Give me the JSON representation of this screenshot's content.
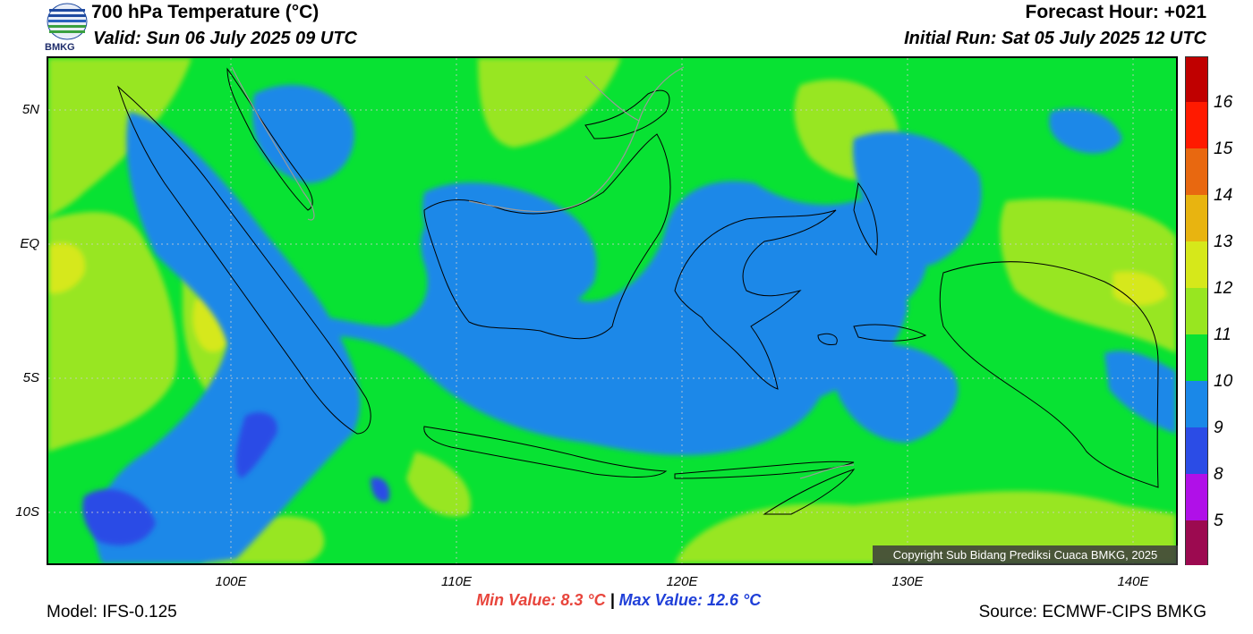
{
  "header": {
    "title": "700 hPa Temperature (°C)",
    "valid": "Valid: Sun 06 July 2025 09 UTC",
    "forecast_hour": "Forecast Hour: +021",
    "initial_run": "Initial Run: Sat 05 July 2025 12 UTC",
    "logo_text": "BMKG"
  },
  "axes": {
    "y_labels": [
      "5N",
      "EQ",
      "5S",
      "10S"
    ],
    "x_labels": [
      "100E",
      "110E",
      "120E",
      "130E",
      "140E"
    ]
  },
  "colorbar": {
    "labels": [
      "16",
      "15",
      "14",
      "13",
      "12",
      "11",
      "10",
      "9",
      "8",
      "5"
    ],
    "colors": [
      "#c00000",
      "#ff1a00",
      "#e86810",
      "#e8b410",
      "#d6e81a",
      "#98e620",
      "#08e233",
      "#1a88e8",
      "#2b4ce6",
      "#b010e8",
      "#9c0a50"
    ]
  },
  "map": {
    "colors": {
      "temp_12": "#d6e81a",
      "temp_11": "#98e620",
      "temp_10": "#08e233",
      "temp_9": "#1a88e8",
      "temp_8": "#2b4ce6"
    }
  },
  "footer": {
    "copyright": "Copyright Sub Bidang Prediksi Cuaca BMKG, 2025",
    "model": "Model: IFS-0.125",
    "source": "Source: ECMWF-CIPS BMKG",
    "min_value": "Min Value: 8.3 °C",
    "separator": "|",
    "max_value": "Max Value: 12.6 °C"
  }
}
